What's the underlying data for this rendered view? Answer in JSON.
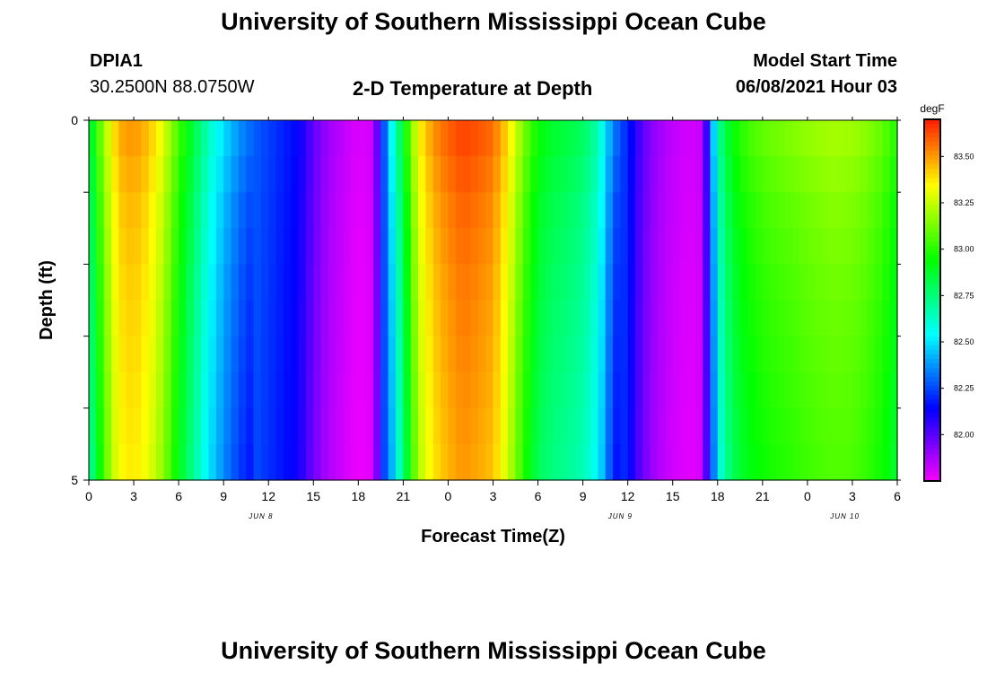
{
  "header": {
    "title": "University of Southern Mississippi Ocean Cube",
    "station_id": "DPIA1",
    "station_coords": "30.2500N  88.0750W",
    "chart_title": "2-D Temperature at Depth",
    "model_start_label": "Model Start Time",
    "model_start_value": "06/08/2021 Hour 03"
  },
  "footer": {
    "title": "University of Southern Mississippi Ocean Cube"
  },
  "chart_data": {
    "type": "heatmap",
    "title": "2-D Temperature at Depth",
    "xlabel": "Forecast Time(Z)",
    "ylabel": "Depth (ft)",
    "x_tick_labels": [
      "0",
      "3",
      "6",
      "9",
      "12",
      "15",
      "18",
      "21",
      "0",
      "3",
      "6",
      "9",
      "12",
      "15",
      "18",
      "21",
      "0",
      "3",
      "6"
    ],
    "x_unit_hours": 3,
    "x_range_hours": [
      0,
      54
    ],
    "date_labels": [
      {
        "text": "JUN 8",
        "hour": 11.5
      },
      {
        "text": "JUN 9",
        "hour": 35.5
      },
      {
        "text": "JUN 10",
        "hour": 50.5
      }
    ],
    "y_tick_labels": [
      "0",
      "5"
    ],
    "ylim": [
      0,
      5
    ],
    "y_inverted": true,
    "colorbar": {
      "unit": "degF",
      "ticks": [
        "83.50",
        "83.25",
        "83.00",
        "82.75",
        "82.50",
        "82.25",
        "82.00"
      ],
      "min": 81.75,
      "max": 83.7
    },
    "time_hours": [
      0,
      1,
      2,
      3,
      4,
      5,
      6,
      7,
      8,
      9,
      10,
      11,
      12,
      13,
      14,
      15,
      16,
      17,
      18,
      19,
      20,
      21,
      22,
      23,
      24,
      25,
      26,
      27,
      28,
      29,
      30,
      31,
      32,
      33,
      34,
      35,
      36,
      37,
      38,
      39,
      40,
      41,
      42,
      43,
      44,
      45,
      46,
      47,
      48,
      49,
      50,
      51,
      52,
      53,
      54
    ],
    "depth_ft": [
      0.25,
      0.75,
      1.25,
      1.75,
      2.25,
      2.75,
      3.25,
      3.75,
      4.25,
      4.75
    ],
    "surface_profile": [
      82.8,
      83.2,
      83.48,
      83.52,
      83.45,
      83.3,
      83.05,
      82.85,
      82.65,
      82.5,
      82.38,
      82.3,
      82.25,
      82.2,
      82.15,
      82.0,
      81.9,
      81.85,
      81.8,
      81.83,
      82.45,
      82.9,
      83.35,
      83.52,
      83.6,
      83.65,
      83.62,
      83.58,
      83.4,
      83.15,
      82.95,
      82.88,
      82.85,
      82.8,
      82.68,
      82.35,
      82.2,
      82.0,
      81.9,
      81.85,
      81.82,
      81.84,
      82.7,
      82.95,
      83.05,
      83.1,
      83.13,
      83.15,
      83.18,
      83.2,
      83.21,
      83.2,
      83.16,
      83.1,
      83.0
    ],
    "depth_offsets": [
      {
        "depth": 0.25,
        "offset": 0.0
      },
      {
        "depth": 1.25,
        "offset": -0.05
      },
      {
        "depth": 2.25,
        "offset": -0.08
      },
      {
        "depth": 3.25,
        "offset": -0.1
      },
      {
        "depth": 4.25,
        "offset": -0.12
      },
      {
        "depth": 4.75,
        "offset": -0.13
      }
    ]
  }
}
